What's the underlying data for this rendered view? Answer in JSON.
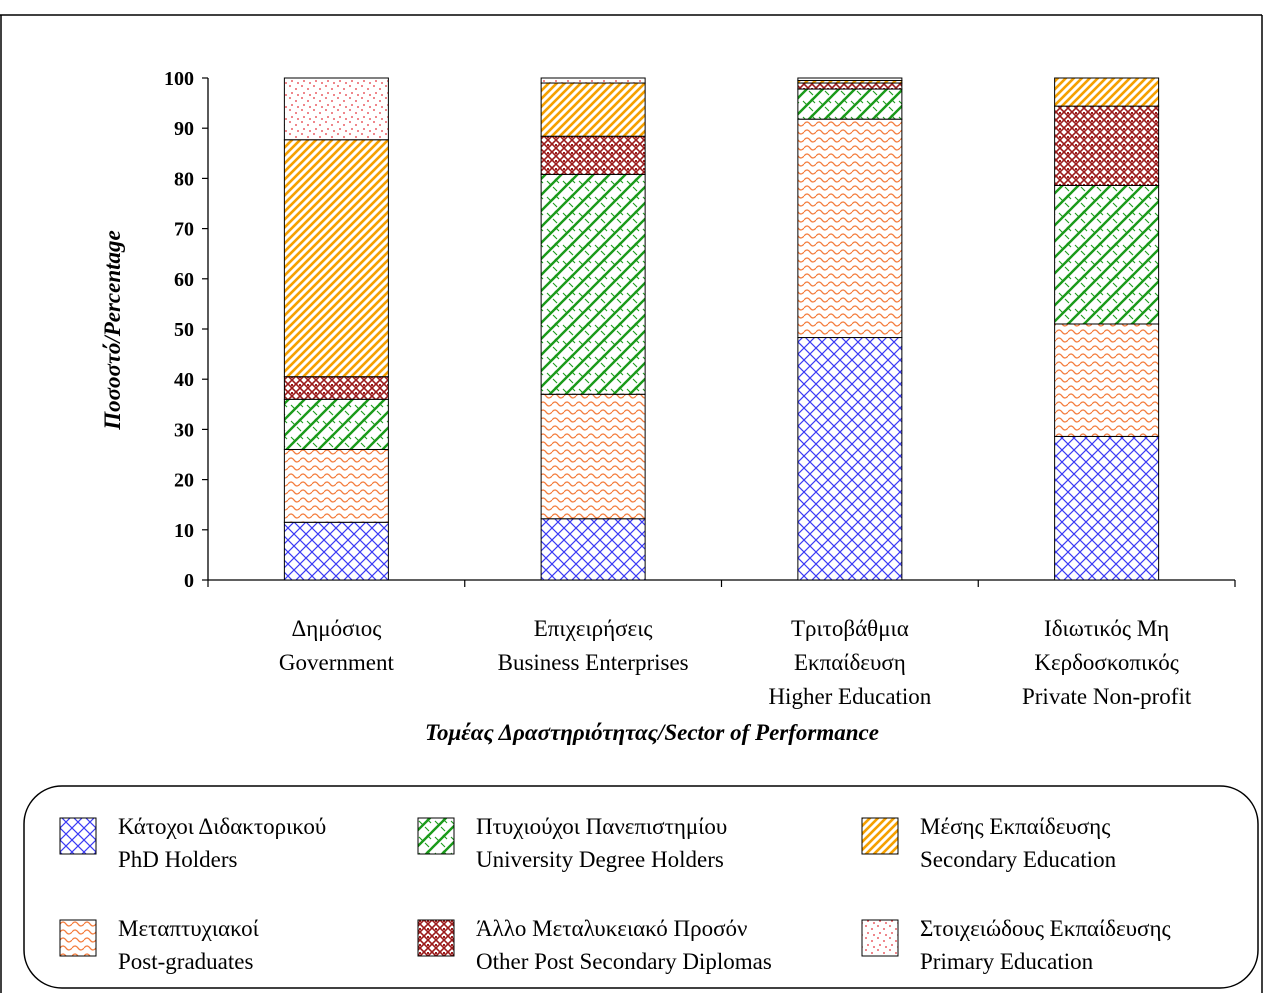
{
  "chart_data": {
    "type": "bar",
    "stacked": true,
    "title": "",
    "ylabel": "Ποσοστό/Percentage",
    "xlabel": "Τομέας Δραστηριότητας/Sector of Performance",
    "ylim": [
      0,
      100
    ],
    "yticks": [
      "0",
      "10",
      "20",
      "30",
      "40",
      "50",
      "60",
      "70",
      "80",
      "90",
      "100"
    ],
    "categories": [
      [
        "Δημόσιος",
        "Government"
      ],
      [
        "Επιχειρήσεις",
        "Business Enterprises"
      ],
      [
        "Τριτοβάθμια",
        "Εκπαίδευση",
        "Higher Education"
      ],
      [
        "Ιδιωτικός Μη",
        "Κερδοσκοπικός",
        "Private Non-profit"
      ]
    ],
    "series": [
      {
        "name": "Κάτοχοι Διδακτορικού PhD Holders",
        "values": [
          11.5,
          12.2,
          48.3,
          28.6
        ],
        "color": "#3b3bf5",
        "pattern": "crosshatch"
      },
      {
        "name": "Μεταπτυχιακοί Post-graduates",
        "values": [
          14.5,
          24.8,
          43.5,
          22.4
        ],
        "color": "#f47c3c",
        "pattern": "wave"
      },
      {
        "name": "Πτυχιούχοι Πανεπιστημίου University Degree Holders",
        "values": [
          10.0,
          43.8,
          6.0,
          27.6
        ],
        "color": "#1a9a1a",
        "pattern": "zigzag"
      },
      {
        "name": "Άλλο Μεταλυκειακό Προσόν Other Post Secondary Diplomas",
        "values": [
          4.5,
          7.6,
          1.2,
          15.8
        ],
        "color": "#9b1b1b",
        "pattern": "weave"
      },
      {
        "name": "Μέσης Εκπαίδευσης Secondary Education",
        "values": [
          47.2,
          10.6,
          0.5,
          5.6
        ],
        "color": "#f5a000",
        "pattern": "diagonal"
      },
      {
        "name": "Στοιχειώδους Εκπαίδευσης Primary Education",
        "values": [
          12.3,
          1.0,
          0.5,
          0.0
        ],
        "color": "#e4313a",
        "pattern": "dots"
      }
    ],
    "legend": {
      "placement": "bottom",
      "entries": [
        {
          "series": 0,
          "line1": "Κάτοχοι Διδακτορικού",
          "line2": "PhD Holders"
        },
        {
          "series": 2,
          "line1": "Πτυχιούχοι Πανεπιστημίου",
          "line2": "University Degree Holders"
        },
        {
          "series": 4,
          "line1": "Μέσης Εκπαίδευσης",
          "line2": "Secondary Education"
        },
        {
          "series": 1,
          "line1": "Μεταπτυχιακοί",
          "line2": "Post-graduates"
        },
        {
          "series": 3,
          "line1": "Άλλο Μεταλυκειακό Προσόν",
          "line2": "Other Post Secondary Diplomas"
        },
        {
          "series": 5,
          "line1": "Στοιχειώδους Εκπαίδευσης",
          "line2": "Primary Education"
        }
      ]
    },
    "grid": false
  }
}
